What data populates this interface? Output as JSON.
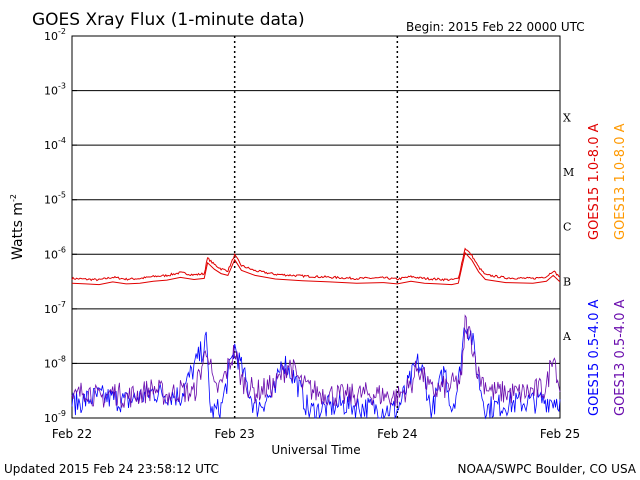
{
  "header": {
    "title": "GOES Xray Flux (1-minute data)",
    "begin": "Begin:  2015 Feb 22 0000 UTC"
  },
  "footer": {
    "updated": "Updated 2015 Feb 24 23:58:12 UTC",
    "credit": "NOAA/SWPC Boulder, CO USA"
  },
  "colors": {
    "goes15_long": "#e00000",
    "goes13_long": "#ff9900",
    "goes15_short": "#0000ff",
    "goes13_short": "#6a0dad"
  },
  "chart_data": {
    "type": "line",
    "ylabel": "Watts m",
    "ylabel_sup": "-2",
    "xlabel": "Universal Time",
    "y_scale": "log",
    "ylim": [
      1e-09,
      0.01
    ],
    "y_ticks": [
      {
        "base": "10",
        "exp": "-9",
        "value": 1e-09
      },
      {
        "base": "10",
        "exp": "-8",
        "value": 1e-08
      },
      {
        "base": "10",
        "exp": "-7",
        "value": 1e-07
      },
      {
        "base": "10",
        "exp": "-6",
        "value": 1e-06
      },
      {
        "base": "10",
        "exp": "-5",
        "value": 1e-05
      },
      {
        "base": "10",
        "exp": "-4",
        "value": 0.0001
      },
      {
        "base": "10",
        "exp": "-3",
        "value": 0.001
      },
      {
        "base": "10",
        "exp": "-2",
        "value": 0.01
      }
    ],
    "x_ticks": [
      {
        "label": "Feb 22",
        "hour": 0
      },
      {
        "label": "Feb 23",
        "hour": 24
      },
      {
        "label": "Feb 24",
        "hour": 48
      },
      {
        "label": "Feb 25",
        "hour": 72
      }
    ],
    "xlim_hours": [
      0,
      72
    ],
    "flare_classes": [
      {
        "label": "X",
        "value": 0.00032
      },
      {
        "label": "M",
        "value": 3.2e-05
      },
      {
        "label": "C",
        "value": 3.2e-06
      },
      {
        "label": "B",
        "value": 3.2e-07
      },
      {
        "label": "A",
        "value": 3.2e-08
      }
    ],
    "grid": "horizontal decades",
    "legend_placement": "right",
    "series": [
      {
        "name": "GOES15 1.0-8.0 A",
        "color": "#e00000",
        "points": [
          [
            0,
            3.6e-07
          ],
          [
            2,
            3.5e-07
          ],
          [
            4,
            3.4e-07
          ],
          [
            6,
            3.8e-07
          ],
          [
            8,
            3.5e-07
          ],
          [
            10,
            3.6e-07
          ],
          [
            12,
            3.9e-07
          ],
          [
            14,
            4.1e-07
          ],
          [
            16,
            4.6e-07
          ],
          [
            18,
            4.2e-07
          ],
          [
            19.5,
            4.4e-07
          ],
          [
            20,
            8.5e-07
          ],
          [
            21,
            6.5e-07
          ],
          [
            22,
            5.4e-07
          ],
          [
            23,
            5e-07
          ],
          [
            24,
            9.7e-07
          ],
          [
            25,
            6.2e-07
          ],
          [
            27,
            5e-07
          ],
          [
            30,
            4.3e-07
          ],
          [
            34,
            4e-07
          ],
          [
            38,
            3.8e-07
          ],
          [
            42,
            3.6e-07
          ],
          [
            46,
            3.7e-07
          ],
          [
            48,
            3.5e-07
          ],
          [
            50,
            3.9e-07
          ],
          [
            52,
            3.6e-07
          ],
          [
            54,
            3.5e-07
          ],
          [
            56,
            3.4e-07
          ],
          [
            57,
            3.6e-07
          ],
          [
            58,
            1.3e-06
          ],
          [
            59,
            9.5e-07
          ],
          [
            60,
            5.8e-07
          ],
          [
            61,
            4.2e-07
          ],
          [
            64,
            3.7e-07
          ],
          [
            68,
            3.6e-07
          ],
          [
            70,
            3.9e-07
          ],
          [
            71,
            5e-07
          ],
          [
            72,
            3.8e-07
          ]
        ]
      },
      {
        "name": "GOES13 1.0-8.0 A",
        "color": "#ff9900",
        "points": []
      },
      {
        "name": "GOES15 0.5-4.0 A",
        "color": "#0000ff",
        "points": [
          [
            0,
            1.8e-09
          ],
          [
            4,
            2.5e-09
          ],
          [
            8,
            2e-09
          ],
          [
            12,
            3e-09
          ],
          [
            16,
            2.5e-09
          ],
          [
            19.8,
            2.5e-08
          ],
          [
            20.5,
            1.2e-09
          ],
          [
            22,
            1.5e-09
          ],
          [
            24,
            2e-08
          ],
          [
            25,
            8e-09
          ],
          [
            27,
            1.5e-09
          ],
          [
            30,
            3e-09
          ],
          [
            31,
            1.2e-08
          ],
          [
            33,
            5e-09
          ],
          [
            35,
            1.3e-09
          ],
          [
            40,
            1.8e-09
          ],
          [
            44,
            1.5e-09
          ],
          [
            48,
            1.4e-09
          ],
          [
            51,
            1e-08
          ],
          [
            52,
            6e-09
          ],
          [
            53,
            1.2e-09
          ],
          [
            55,
            8e-09
          ],
          [
            56,
            1.5e-09
          ],
          [
            57,
            4e-09
          ],
          [
            58,
            6e-08
          ],
          [
            59,
            3e-08
          ],
          [
            60,
            5e-09
          ],
          [
            61,
            1.5e-09
          ],
          [
            64,
            1.8e-09
          ],
          [
            68,
            2e-09
          ],
          [
            72,
            2.2e-09
          ]
        ]
      },
      {
        "name": "GOES13 0.5-4.0 A",
        "color": "#6a0dad",
        "points": [
          [
            0,
            2e-09
          ],
          [
            2,
            3.5e-09
          ],
          [
            4,
            2.2e-09
          ],
          [
            6,
            3e-09
          ],
          [
            8,
            2.4e-09
          ],
          [
            10,
            2.8e-09
          ],
          [
            12,
            3.5e-09
          ],
          [
            14,
            2.6e-09
          ],
          [
            16,
            3.2e-09
          ],
          [
            18,
            2.8e-09
          ],
          [
            20,
            2e-08
          ],
          [
            21,
            3e-09
          ],
          [
            22,
            4e-09
          ],
          [
            24,
            1.7e-08
          ],
          [
            25,
            5e-09
          ],
          [
            27,
            3e-09
          ],
          [
            30,
            4e-09
          ],
          [
            32,
            1e-08
          ],
          [
            34,
            4e-09
          ],
          [
            36,
            3e-09
          ],
          [
            40,
            2.5e-09
          ],
          [
            44,
            2.8e-09
          ],
          [
            48,
            2.4e-09
          ],
          [
            50,
            4e-09
          ],
          [
            51,
            9e-09
          ],
          [
            53,
            3e-09
          ],
          [
            56,
            4e-09
          ],
          [
            57.5,
            5e-09
          ],
          [
            58,
            5.8e-08
          ],
          [
            59,
            2.5e-08
          ],
          [
            60,
            6e-09
          ],
          [
            62,
            3e-09
          ],
          [
            66,
            2.8e-09
          ],
          [
            70,
            3.5e-09
          ],
          [
            71,
            1.8e-08
          ],
          [
            72,
            3e-09
          ]
        ]
      }
    ]
  }
}
